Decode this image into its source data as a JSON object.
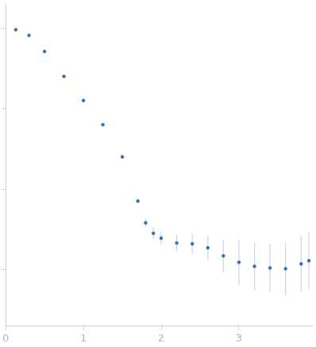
{
  "chart_data": {
    "type": "scatter",
    "x": [
      0.13,
      0.3,
      0.5,
      0.75,
      1.0,
      1.25,
      1.5,
      1.7,
      1.8,
      1.9,
      2.0,
      2.2,
      2.4,
      2.6,
      2.8,
      3.0,
      3.2,
      3.4,
      3.6,
      3.8,
      3.9
    ],
    "values": [
      3.98,
      3.91,
      3.71,
      3.4,
      3.1,
      2.8,
      2.4,
      1.85,
      1.58,
      1.45,
      1.39,
      1.33,
      1.32,
      1.27,
      1.17,
      1.09,
      1.04,
      1.02,
      1.01,
      1.07,
      1.11
    ],
    "errors": [
      0.01,
      0.01,
      0.01,
      0.01,
      0.01,
      0.01,
      0.02,
      0.03,
      0.05,
      0.07,
      0.08,
      0.1,
      0.12,
      0.15,
      0.2,
      0.28,
      0.3,
      0.3,
      0.33,
      0.35,
      0.35
    ],
    "color": "#3d6bb3",
    "marker": "circle",
    "xlim": [
      0,
      3.94
    ],
    "xticks": [
      0,
      1,
      2,
      3
    ],
    "ylim": [
      0.3,
      4.3
    ],
    "yticks": [
      1,
      2,
      3,
      4
    ],
    "tick_labels": "x",
    "grid": false
  }
}
